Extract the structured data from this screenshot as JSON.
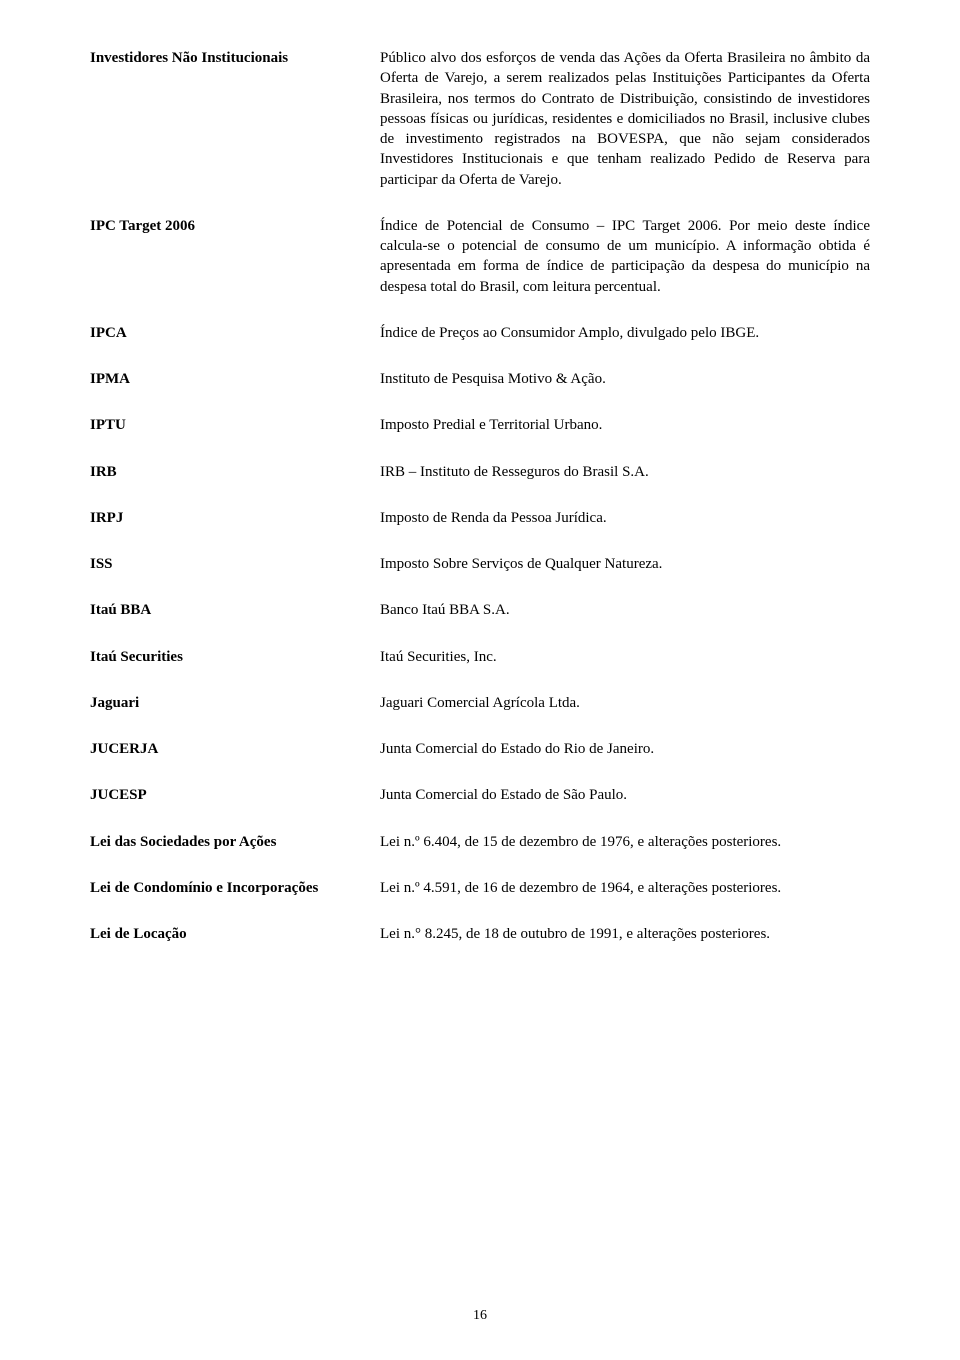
{
  "page_number": "16",
  "entries": [
    {
      "term": "Investidores Não Institucionais",
      "def": "Público alvo dos esforços de venda das Ações da Oferta Brasileira no âmbito da Oferta de Varejo, a serem realizados pelas Instituições Participantes da Oferta Brasileira, nos termos do Contrato de Distribuição, consistindo de investidores pessoas físicas ou jurídicas, residentes e domiciliados no Brasil, inclusive clubes de investimento registrados na BOVESPA, que não sejam considerados Investidores Institucionais e que tenham realizado Pedido de Reserva para participar da Oferta de Varejo."
    },
    {
      "term": "IPC Target 2006",
      "def": "Índice de Potencial de Consumo – IPC Target 2006. Por meio deste índice calcula-se o potencial de consumo de um município. A informação obtida é apresentada em forma de índice de participação da despesa do município na despesa total do Brasil, com leitura percentual."
    },
    {
      "term": "IPCA",
      "def": "Índice de Preços ao Consumidor Amplo, divulgado pelo IBGE."
    },
    {
      "term": "IPMA",
      "def": "Instituto de Pesquisa Motivo & Ação."
    },
    {
      "term": "IPTU",
      "def": "Imposto Predial e Territorial Urbano."
    },
    {
      "term": "IRB",
      "def": "IRB – Instituto de Resseguros do Brasil S.A."
    },
    {
      "term": "IRPJ",
      "def": "Imposto de Renda da Pessoa Jurídica."
    },
    {
      "term": "ISS",
      "def": "Imposto Sobre Serviços de Qualquer Natureza."
    },
    {
      "term": "Itaú BBA",
      "def": "Banco Itaú BBA S.A."
    },
    {
      "term": "Itaú Securities",
      "def": "Itaú Securities, Inc."
    },
    {
      "term": "Jaguari",
      "def": "Jaguari Comercial Agrícola Ltda."
    },
    {
      "term": "JUCERJA",
      "def": "Junta Comercial do Estado do Rio de Janeiro."
    },
    {
      "term": "JUCESP",
      "def": "Junta Comercial do Estado de São Paulo."
    },
    {
      "term": "Lei das Sociedades por Ações",
      "def": "Lei n.º 6.404, de 15 de dezembro de 1976, e alterações posteriores."
    },
    {
      "term": "Lei de Condomínio e Incorporações",
      "def": "Lei n.º 4.591, de 16 de dezembro de 1964, e alterações posteriores."
    },
    {
      "term": "Lei de Locação",
      "def": "Lei n.° 8.245, de 18 de outubro de 1991, e alterações posteriores."
    }
  ]
}
